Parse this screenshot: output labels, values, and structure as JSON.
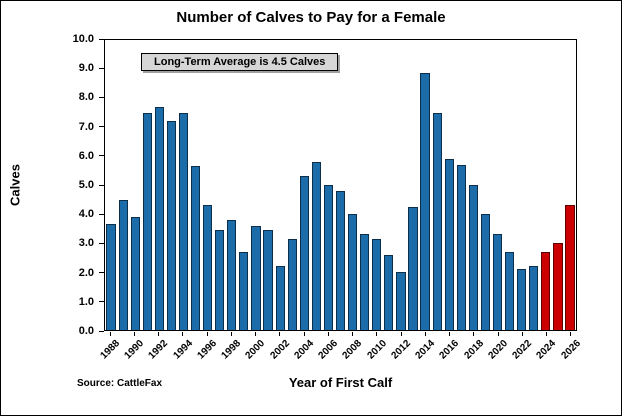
{
  "title": "Number of Calves to Pay for a Female",
  "annotation": "Long-Term Average is 4.5 Calves",
  "xlabel": "Year of First Calf",
  "ylabel": "Calves",
  "source": "Source: CattleFax",
  "colors": {
    "bar_blue": "#1b6ca8",
    "bar_red": "#cc0000",
    "annotation_bg": "#d6d6d6",
    "axis": "#000000"
  },
  "chart_data": {
    "type": "bar",
    "title": "Number of Calves to Pay for a Female",
    "xlabel": "Year of First Calf",
    "ylabel": "Calves",
    "ylim": [
      0,
      10
    ],
    "ytick_step": 1.0,
    "xtick_every_years": 2,
    "grid": false,
    "annotation": "Long-Term Average is 4.5 Calves",
    "categories": [
      "1988",
      "1989",
      "1990",
      "1991",
      "1992",
      "1993",
      "1994",
      "1995",
      "1996",
      "1997",
      "1998",
      "1999",
      "2000",
      "2001",
      "2002",
      "2003",
      "2004",
      "2005",
      "2006",
      "2007",
      "2008",
      "2009",
      "2010",
      "2011",
      "2012",
      "2013",
      "2014",
      "2015",
      "2016",
      "2017",
      "2018",
      "2019",
      "2020",
      "2021",
      "2022",
      "2023",
      "2024",
      "2025",
      "2026"
    ],
    "values": [
      3.65,
      4.5,
      3.9,
      7.5,
      7.7,
      7.2,
      7.5,
      5.65,
      4.3,
      3.45,
      3.8,
      2.7,
      3.6,
      3.45,
      2.2,
      3.15,
      5.3,
      5.8,
      5.0,
      4.8,
      4.0,
      3.3,
      3.15,
      2.6,
      2.0,
      4.25,
      8.85,
      7.5,
      5.9,
      5.7,
      5.0,
      4.0,
      3.3,
      2.7,
      2.1,
      2.2,
      2.7,
      3.0,
      4.3
    ],
    "highlight_from_year": 2024,
    "highlight_color": "#cc0000",
    "bar_color": "#1b6ca8"
  }
}
